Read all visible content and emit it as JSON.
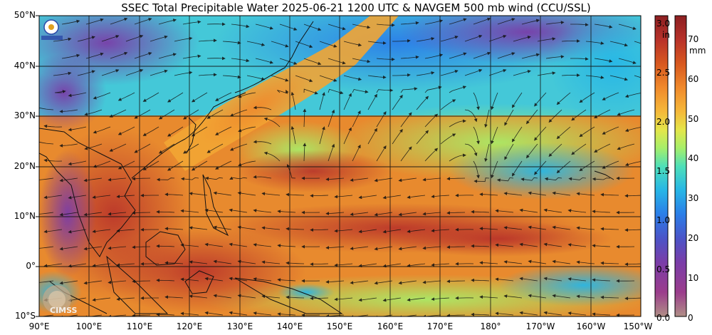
{
  "title": "SSEC Total Precipitable Water  2025-06-21 1200 UTC & NAVGEM 500 mb wind (CCU/SSL)",
  "map": {
    "lat_labels": [
      "50°N",
      "40°N",
      "30°N",
      "20°N",
      "10°N",
      "0°",
      "10°S"
    ],
    "lon_labels": [
      "90°E",
      "100°E",
      "110°E",
      "120°E",
      "130°E",
      "140°E",
      "150°E",
      "160°E",
      "170°E",
      "180°",
      "170°W",
      "160°W",
      "150°W"
    ],
    "lat_range": [
      -10,
      50
    ],
    "lon_range": [
      90,
      210
    ],
    "logo_text": "CIMSS"
  },
  "colorbar": {
    "in_unit": "in",
    "mm_unit": "mm",
    "in_ticks": [
      "3.0",
      "2.5",
      "2.0",
      "1.5",
      "1.0",
      "0.5",
      "0.0"
    ],
    "mm_ticks": [
      "70",
      "60",
      "50",
      "40",
      "30",
      "20",
      "10",
      "0"
    ],
    "colors": [
      "#b08f86",
      "#9b3d8c",
      "#7a3da8",
      "#4b54c8",
      "#2b7ee8",
      "#27b6e6",
      "#4fe0b8",
      "#a6ef6a",
      "#e4e64a",
      "#f5b93a",
      "#f08a2c",
      "#d8581f",
      "#b8322a",
      "#8c1f22"
    ]
  }
}
